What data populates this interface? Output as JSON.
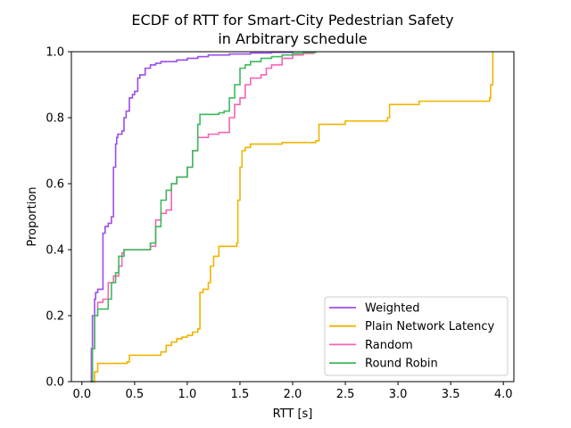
{
  "chart_data": {
    "type": "line",
    "title_line1": "ECDF of RTT for Smart-City Pedestrian Safety",
    "title_line2": "in Arbitrary schedule",
    "xlabel": "RTT [s]",
    "ylabel": "Proportion",
    "xlim": [
      -0.1,
      4.1
    ],
    "ylim": [
      0,
      1
    ],
    "xticks": [
      0.0,
      0.5,
      1.0,
      1.5,
      2.0,
      2.5,
      3.0,
      3.5,
      4.0
    ],
    "xtick_labels": [
      "0.0",
      "0.5",
      "1.0",
      "1.5",
      "2.0",
      "2.5",
      "3.0",
      "3.5",
      "4.0"
    ],
    "yticks": [
      0.0,
      0.2,
      0.4,
      0.6,
      0.8,
      1.0
    ],
    "ytick_labels": [
      "0.0",
      "0.2",
      "0.4",
      "0.6",
      "0.8",
      "1.0"
    ],
    "grid": false,
    "legend_position": "lower-right",
    "series": [
      {
        "name": "Weighted",
        "color": "#9b4dea",
        "x": [
          0.08,
          0.09,
          0.1,
          0.12,
          0.13,
          0.15,
          0.2,
          0.22,
          0.25,
          0.28,
          0.3,
          0.32,
          0.33,
          0.34,
          0.38,
          0.4,
          0.42,
          0.45,
          0.48,
          0.5,
          0.53,
          0.55,
          0.6,
          0.65,
          0.7,
          0.75,
          0.9,
          1.0,
          1.1,
          1.2,
          1.4,
          1.6,
          1.8,
          2.0
        ],
        "y": [
          0.0,
          0.1,
          0.2,
          0.25,
          0.27,
          0.28,
          0.45,
          0.47,
          0.48,
          0.5,
          0.65,
          0.72,
          0.74,
          0.75,
          0.76,
          0.8,
          0.82,
          0.86,
          0.87,
          0.88,
          0.92,
          0.93,
          0.95,
          0.96,
          0.965,
          0.97,
          0.975,
          0.98,
          0.985,
          0.99,
          0.993,
          0.996,
          0.998,
          1.0
        ]
      },
      {
        "name": "Plain Network Latency",
        "color": "#f0b400",
        "x": [
          0.1,
          0.12,
          0.15,
          0.43,
          0.45,
          0.75,
          0.8,
          0.85,
          0.9,
          0.95,
          1.0,
          1.05,
          1.1,
          1.12,
          1.15,
          1.2,
          1.22,
          1.25,
          1.3,
          1.47,
          1.48,
          1.5,
          1.52,
          1.55,
          1.6,
          1.7,
          1.9,
          2.22,
          2.25,
          2.5,
          2.9,
          2.92,
          3.2,
          3.87,
          3.88,
          3.9
        ],
        "y": [
          0.0,
          0.03,
          0.055,
          0.06,
          0.08,
          0.09,
          0.11,
          0.12,
          0.13,
          0.135,
          0.14,
          0.15,
          0.16,
          0.27,
          0.28,
          0.3,
          0.35,
          0.38,
          0.41,
          0.42,
          0.55,
          0.65,
          0.7,
          0.71,
          0.72,
          0.72,
          0.725,
          0.73,
          0.78,
          0.79,
          0.8,
          0.84,
          0.85,
          0.86,
          0.9,
          1.0
        ]
      },
      {
        "name": "Random",
        "color": "#f564b4",
        "x": [
          0.08,
          0.1,
          0.12,
          0.15,
          0.2,
          0.25,
          0.3,
          0.35,
          0.38,
          0.4,
          0.45,
          0.5,
          0.65,
          0.7,
          0.75,
          0.8,
          0.85,
          0.9,
          1.0,
          1.05,
          1.1,
          1.2,
          1.3,
          1.4,
          1.45,
          1.5,
          1.55,
          1.6,
          1.7,
          1.75,
          1.8,
          1.9,
          2.0,
          2.1,
          2.2
        ],
        "y": [
          0.0,
          0.1,
          0.2,
          0.24,
          0.25,
          0.3,
          0.32,
          0.35,
          0.39,
          0.4,
          0.4,
          0.4,
          0.41,
          0.49,
          0.51,
          0.52,
          0.6,
          0.62,
          0.65,
          0.7,
          0.74,
          0.75,
          0.755,
          0.8,
          0.84,
          0.86,
          0.9,
          0.92,
          0.93,
          0.95,
          0.96,
          0.98,
          0.99,
          0.995,
          1.0
        ]
      },
      {
        "name": "Round Robin",
        "color": "#3cba5c",
        "x": [
          0.08,
          0.1,
          0.12,
          0.15,
          0.25,
          0.28,
          0.32,
          0.35,
          0.4,
          0.65,
          0.7,
          0.75,
          0.8,
          0.85,
          0.9,
          1.0,
          1.05,
          1.1,
          1.12,
          1.3,
          1.35,
          1.4,
          1.45,
          1.5,
          1.55,
          1.6,
          1.7,
          1.8,
          1.9,
          2.0,
          2.1,
          2.22
        ],
        "y": [
          0.0,
          0.1,
          0.2,
          0.22,
          0.25,
          0.3,
          0.33,
          0.38,
          0.4,
          0.42,
          0.47,
          0.55,
          0.58,
          0.6,
          0.62,
          0.65,
          0.7,
          0.78,
          0.81,
          0.815,
          0.82,
          0.86,
          0.9,
          0.95,
          0.96,
          0.97,
          0.98,
          0.985,
          0.99,
          0.995,
          0.998,
          1.0
        ]
      }
    ]
  }
}
